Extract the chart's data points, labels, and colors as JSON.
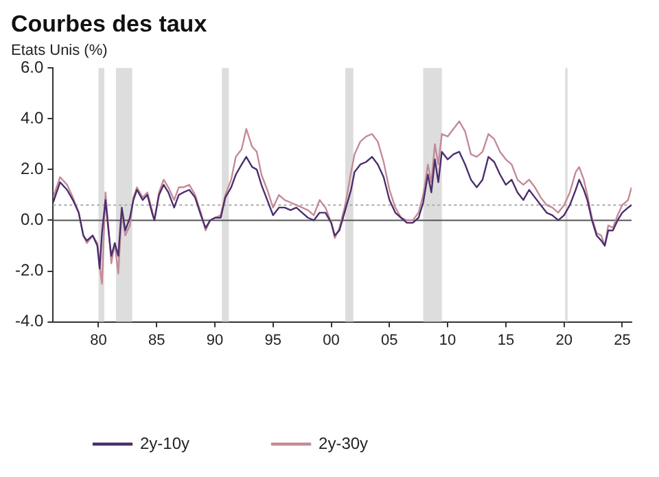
{
  "chart_data": {
    "type": "line",
    "title": "Courbes des taux",
    "subtitle": "Etats Unis (%)",
    "x": [
      1976.1,
      1976.7,
      1977.3,
      1977.8,
      1978.3,
      1978.7,
      1979.0,
      1979.5,
      1979.9,
      1980.1,
      1980.3,
      1980.6,
      1980.9,
      1981.1,
      1981.4,
      1981.7,
      1982.0,
      1982.3,
      1982.7,
      1983.0,
      1983.3,
      1983.8,
      1984.2,
      1984.6,
      1984.8,
      1985.2,
      1985.6,
      1986.0,
      1986.5,
      1986.9,
      1987.3,
      1987.8,
      1988.3,
      1988.8,
      1989.2,
      1989.6,
      1990.0,
      1990.5,
      1990.9,
      1991.4,
      1991.8,
      1992.3,
      1992.7,
      1993.2,
      1993.6,
      1994.0,
      1994.5,
      1995.0,
      1995.5,
      1996.0,
      1996.5,
      1997.0,
      1997.5,
      1998.0,
      1998.5,
      1999.0,
      1999.5,
      2000.0,
      2000.3,
      2000.7,
      2001.2,
      2001.7,
      2002.0,
      2002.5,
      2003.0,
      2003.5,
      2004.0,
      2004.5,
      2005.0,
      2005.5,
      2006.0,
      2006.5,
      2007.0,
      2007.5,
      2007.9,
      2008.3,
      2008.6,
      2008.9,
      2009.2,
      2009.5,
      2010.0,
      2010.5,
      2011.0,
      2011.5,
      2012.0,
      2012.5,
      2013.0,
      2013.5,
      2014.0,
      2014.5,
      2015.0,
      2015.5,
      2016.0,
      2016.5,
      2017.0,
      2017.5,
      2018.0,
      2018.5,
      2019.0,
      2019.5,
      2020.0,
      2020.5,
      2021.0,
      2021.3,
      2021.7,
      2022.0,
      2022.4,
      2022.8,
      2023.2,
      2023.5,
      2023.8,
      2024.2,
      2024.6,
      2025.0,
      2025.5,
      2025.8
    ],
    "series": [
      {
        "name": "2y-10y",
        "color": "#4b2e6e",
        "values": [
          0.7,
          1.5,
          1.2,
          0.8,
          0.3,
          -0.6,
          -0.8,
          -0.6,
          -1.0,
          -1.9,
          -0.5,
          0.8,
          -0.6,
          -1.4,
          -0.9,
          -1.4,
          0.5,
          -0.4,
          0.1,
          0.8,
          1.2,
          0.8,
          1.0,
          0.3,
          0.0,
          1.0,
          1.4,
          1.1,
          0.5,
          1.0,
          1.1,
          1.2,
          0.9,
          0.2,
          -0.3,
          0.0,
          0.1,
          0.1,
          0.9,
          1.3,
          1.8,
          2.2,
          2.5,
          2.1,
          2.0,
          1.4,
          0.8,
          0.2,
          0.5,
          0.5,
          0.4,
          0.5,
          0.3,
          0.1,
          0.0,
          0.3,
          0.3,
          -0.1,
          -0.6,
          -0.4,
          0.4,
          1.2,
          1.9,
          2.2,
          2.3,
          2.5,
          2.2,
          1.7,
          0.8,
          0.3,
          0.1,
          -0.1,
          -0.1,
          0.1,
          0.7,
          1.8,
          1.1,
          2.4,
          1.5,
          2.7,
          2.4,
          2.6,
          2.7,
          2.2,
          1.6,
          1.3,
          1.6,
          2.5,
          2.3,
          1.8,
          1.4,
          1.6,
          1.1,
          0.8,
          1.2,
          0.9,
          0.6,
          0.3,
          0.2,
          0.0,
          0.2,
          0.6,
          1.2,
          1.6,
          1.2,
          0.8,
          0.0,
          -0.6,
          -0.8,
          -1.0,
          -0.4,
          -0.4,
          0.0,
          0.3,
          0.5,
          0.6
        ]
      },
      {
        "name": "2y-30y",
        "color": "#c48a96",
        "values": [
          0.9,
          1.7,
          1.4,
          0.9,
          0.3,
          -0.6,
          -0.9,
          -0.6,
          -0.9,
          -1.8,
          -2.5,
          1.1,
          -0.5,
          -1.7,
          -0.9,
          -2.1,
          0.3,
          -0.6,
          -0.2,
          0.9,
          1.3,
          0.9,
          1.1,
          0.4,
          0.0,
          1.1,
          1.6,
          1.3,
          0.8,
          1.3,
          1.3,
          1.4,
          1.0,
          0.3,
          -0.4,
          0.0,
          0.1,
          0.2,
          1.0,
          1.6,
          2.5,
          2.8,
          3.6,
          2.9,
          2.7,
          1.8,
          1.2,
          0.5,
          1.0,
          0.8,
          0.7,
          0.6,
          0.5,
          0.4,
          0.2,
          0.8,
          0.5,
          -0.1,
          -0.7,
          -0.3,
          0.6,
          1.9,
          2.6,
          3.1,
          3.3,
          3.4,
          3.1,
          2.3,
          1.2,
          0.5,
          0.1,
          0.0,
          0.0,
          0.3,
          1.0,
          2.2,
          1.5,
          3.0,
          2.2,
          3.4,
          3.3,
          3.6,
          3.9,
          3.5,
          2.6,
          2.5,
          2.7,
          3.4,
          3.2,
          2.7,
          2.4,
          2.2,
          1.6,
          1.4,
          1.6,
          1.3,
          0.9,
          0.6,
          0.5,
          0.3,
          0.6,
          1.1,
          1.9,
          2.1,
          1.6,
          1.0,
          0.1,
          -0.5,
          -0.6,
          -1.0,
          -0.2,
          -0.3,
          0.2,
          0.6,
          0.8,
          1.3
        ]
      }
    ],
    "xlim": [
      1976.1,
      2025.8
    ],
    "xticks": [
      {
        "value": 1980,
        "label": "80"
      },
      {
        "value": 1985,
        "label": "85"
      },
      {
        "value": 1990,
        "label": "90"
      },
      {
        "value": 1995,
        "label": "95"
      },
      {
        "value": 2000,
        "label": "00"
      },
      {
        "value": 2005,
        "label": "05"
      },
      {
        "value": 2010,
        "label": "10"
      },
      {
        "value": 2015,
        "label": "15"
      },
      {
        "value": 2020,
        "label": "20"
      },
      {
        "value": 2025,
        "label": "25"
      }
    ],
    "ylim": [
      -4,
      6
    ],
    "yticks": [
      {
        "value": -4,
        "label": "-4.0"
      },
      {
        "value": -2,
        "label": "-2.0"
      },
      {
        "value": 0,
        "label": "0.0"
      },
      {
        "value": 2,
        "label": "2.0"
      },
      {
        "value": 4,
        "label": "4.0"
      },
      {
        "value": 6,
        "label": "6.0"
      }
    ],
    "ref_lines": [
      {
        "axis": "y",
        "value": 0,
        "color": "#555555",
        "line_style": "solid"
      },
      {
        "axis": "y",
        "value": 0.6,
        "color": "#aaaaaa",
        "line_style": "dotted"
      }
    ],
    "bands": [
      {
        "axis": "x",
        "from": 1980.0,
        "to": 1980.5,
        "color": "#dddddd"
      },
      {
        "axis": "x",
        "from": 1981.5,
        "to": 1982.9,
        "color": "#dddddd"
      },
      {
        "axis": "x",
        "from": 1990.6,
        "to": 1991.2,
        "color": "#dddddd"
      },
      {
        "axis": "x",
        "from": 2001.2,
        "to": 2001.9,
        "color": "#dddddd"
      },
      {
        "axis": "x",
        "from": 2007.9,
        "to": 2009.5,
        "color": "#dddddd"
      },
      {
        "axis": "x",
        "from": 2020.1,
        "to": 2020.3,
        "color": "#dddddd"
      }
    ],
    "grid": false,
    "legend": "bottom",
    "marker": "none",
    "line_style": "solid"
  }
}
